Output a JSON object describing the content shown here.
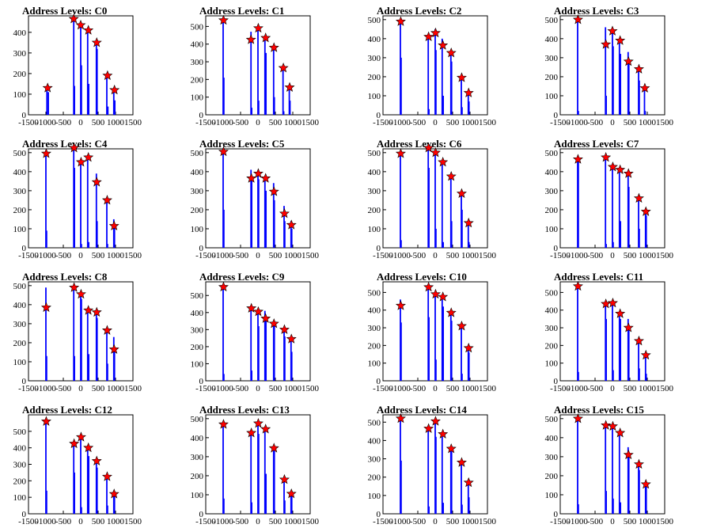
{
  "page": {
    "xlim": [
      -1500,
      1500
    ],
    "x_ticks": [
      -1500,
      -1000,
      -500,
      0,
      500,
      1000,
      1500
    ],
    "bar_color": "#0000ff",
    "marker_color": "#ff0000"
  },
  "chart_data": [
    {
      "type": "bar",
      "title": "Address Levels: C0",
      "ylim": [
        0,
        480
      ],
      "y_ticks": [
        0,
        100,
        200,
        300,
        400
      ],
      "x": [
        -970,
        -930,
        -200,
        -180,
        0,
        20,
        200,
        230,
        450,
        470,
        750,
        780,
        950,
        980
      ],
      "values": [
        130,
        110,
        460,
        140,
        430,
        240,
        410,
        150,
        350,
        320,
        190,
        40,
        120,
        70
      ],
      "peaks": {
        "x": [
          -950,
          -200,
          0,
          220,
          460,
          770,
          970
        ],
        "values": [
          130,
          465,
          435,
          410,
          350,
          190,
          120
        ]
      }
    },
    {
      "type": "bar",
      "title": "Address Levels: C1",
      "ylim": [
        0,
        560
      ],
      "y_ticks": [
        0,
        100,
        200,
        300,
        400,
        500
      ],
      "x": [
        -1000,
        -980,
        -200,
        -180,
        0,
        20,
        200,
        230,
        450,
        470,
        720,
        740,
        900,
        920
      ],
      "values": [
        540,
        210,
        470,
        40,
        500,
        80,
        440,
        350,
        390,
        100,
        260,
        20,
        160,
        80
      ],
      "peaks": {
        "x": [
          -990,
          -200,
          10,
          220,
          460,
          730,
          910
        ],
        "values": [
          535,
          425,
          490,
          435,
          380,
          265,
          155
        ]
      }
    },
    {
      "type": "bar",
      "title": "Address Levels: C2",
      "ylim": [
        0,
        520
      ],
      "y_ticks": [
        0,
        100,
        200,
        300,
        400,
        500
      ],
      "x": [
        -1000,
        -980,
        -200,
        -180,
        0,
        20,
        200,
        230,
        450,
        470,
        750,
        770,
        950,
        970
      ],
      "values": [
        500,
        300,
        420,
        30,
        450,
        340,
        400,
        100,
        330,
        280,
        200,
        40,
        120,
        70
      ],
      "peaks": {
        "x": [
          -990,
          -190,
          10,
          220,
          460,
          760,
          960
        ],
        "values": [
          490,
          410,
          430,
          365,
          325,
          195,
          115
        ]
      }
    },
    {
      "type": "bar",
      "title": "Address Levels: C3",
      "ylim": [
        0,
        520
      ],
      "y_ticks": [
        0,
        100,
        200,
        300,
        400,
        500
      ],
      "x": [
        -1000,
        -980,
        -200,
        -180,
        0,
        20,
        200,
        230,
        450,
        470,
        750,
        770,
        920,
        940
      ],
      "values": [
        510,
        20,
        460,
        100,
        450,
        360,
        400,
        320,
        330,
        280,
        240,
        180,
        140,
        20
      ],
      "peaks": {
        "x": [
          -990,
          -190,
          0,
          220,
          460,
          760,
          930
        ],
        "values": [
          500,
          370,
          440,
          390,
          280,
          240,
          140
        ]
      }
    },
    {
      "type": "bar",
      "title": "Address Levels: C4",
      "ylim": [
        0,
        520
      ],
      "y_ticks": [
        0,
        100,
        200,
        300,
        400,
        500
      ],
      "x": [
        -1000,
        -980,
        -200,
        -180,
        0,
        20,
        200,
        230,
        450,
        470,
        750,
        770,
        950,
        970
      ],
      "values": [
        500,
        90,
        530,
        420,
        460,
        20,
        480,
        30,
        390,
        140,
        250,
        20,
        150,
        120
      ],
      "peaks": {
        "x": [
          -990,
          -190,
          10,
          220,
          460,
          760,
          960
        ],
        "values": [
          495,
          525,
          450,
          475,
          345,
          250,
          115
        ]
      }
    },
    {
      "type": "bar",
      "title": "Address Levels: C5",
      "ylim": [
        0,
        520
      ],
      "y_ticks": [
        0,
        100,
        200,
        300,
        400,
        500
      ],
      "x": [
        -1000,
        -980,
        -200,
        -180,
        0,
        20,
        200,
        230,
        450,
        470,
        750,
        770,
        950,
        970
      ],
      "values": [
        510,
        200,
        410,
        370,
        400,
        360,
        370,
        300,
        340,
        250,
        220,
        140,
        140,
        100
      ],
      "peaks": {
        "x": [
          -990,
          -190,
          10,
          220,
          460,
          760,
          960
        ],
        "values": [
          505,
          365,
          390,
          365,
          295,
          180,
          120
        ]
      }
    },
    {
      "type": "bar",
      "title": "Address Levels: C6",
      "ylim": [
        0,
        520
      ],
      "y_ticks": [
        0,
        100,
        200,
        300,
        400,
        500
      ],
      "x": [
        -1000,
        -980,
        -200,
        -180,
        0,
        20,
        200,
        230,
        450,
        470,
        750,
        770,
        950,
        970
      ],
      "values": [
        500,
        40,
        530,
        420,
        500,
        100,
        450,
        30,
        380,
        140,
        290,
        200,
        140,
        30
      ],
      "peaks": {
        "x": [
          -990,
          -190,
          10,
          220,
          460,
          760,
          960
        ],
        "values": [
          495,
          525,
          500,
          450,
          375,
          285,
          130
        ]
      }
    },
    {
      "type": "bar",
      "title": "Address Levels: C7",
      "ylim": [
        0,
        520
      ],
      "y_ticks": [
        0,
        100,
        200,
        300,
        400,
        500
      ],
      "x": [
        -1000,
        -980,
        -200,
        -180,
        0,
        20,
        200,
        230,
        450,
        470,
        750,
        770,
        950,
        970
      ],
      "values": [
        480,
        460,
        480,
        20,
        430,
        30,
        420,
        140,
        400,
        320,
        270,
        100,
        190,
        170
      ],
      "peaks": {
        "x": [
          -990,
          -190,
          10,
          220,
          460,
          760,
          960
        ],
        "values": [
          465,
          475,
          425,
          410,
          390,
          260,
          190
        ]
      }
    },
    {
      "type": "bar",
      "title": "Address Levels: C8",
      "ylim": [
        0,
        520
      ],
      "y_ticks": [
        0,
        100,
        200,
        300,
        400,
        500
      ],
      "x": [
        -1000,
        -980,
        -200,
        -180,
        0,
        20,
        200,
        230,
        450,
        470,
        750,
        770,
        950,
        970
      ],
      "values": [
        490,
        130,
        500,
        130,
        460,
        430,
        380,
        140,
        370,
        330,
        260,
        90,
        230,
        160
      ],
      "peaks": {
        "x": [
          -990,
          -190,
          10,
          220,
          460,
          760,
          960
        ],
        "values": [
          385,
          490,
          455,
          370,
          360,
          265,
          165
        ]
      }
    },
    {
      "type": "bar",
      "title": "Address Levels: C9",
      "ylim": [
        0,
        580
      ],
      "y_ticks": [
        0,
        100,
        200,
        300,
        400,
        500
      ],
      "x": [
        -1000,
        -980,
        -200,
        -180,
        0,
        20,
        200,
        230,
        450,
        470,
        750,
        770,
        950,
        970
      ],
      "values": [
        560,
        40,
        430,
        60,
        410,
        320,
        410,
        370,
        350,
        320,
        310,
        260,
        250,
        170
      ],
      "peaks": {
        "x": [
          -990,
          -190,
          10,
          220,
          460,
          760,
          960
        ],
        "values": [
          550,
          425,
          405,
          365,
          335,
          300,
          245
        ]
      }
    },
    {
      "type": "bar",
      "title": "Address Levels: C10",
      "ylim": [
        0,
        560
      ],
      "y_ticks": [
        0,
        100,
        200,
        300,
        400,
        500
      ],
      "x": [
        -1000,
        -980,
        -200,
        -180,
        0,
        20,
        200,
        230,
        450,
        470,
        750,
        770,
        950,
        970
      ],
      "values": [
        460,
        330,
        540,
        360,
        500,
        120,
        480,
        420,
        400,
        340,
        320,
        40,
        190,
        160
      ],
      "peaks": {
        "x": [
          -990,
          -190,
          10,
          220,
          460,
          760,
          960
        ],
        "values": [
          425,
          530,
          490,
          475,
          385,
          310,
          185
        ]
      }
    },
    {
      "type": "bar",
      "title": "Address Levels: C11",
      "ylim": [
        0,
        560
      ],
      "y_ticks": [
        0,
        100,
        200,
        300,
        400,
        500
      ],
      "x": [
        -1000,
        -980,
        -200,
        -180,
        0,
        20,
        200,
        230,
        450,
        470,
        750,
        770,
        950,
        970
      ],
      "values": [
        540,
        50,
        450,
        350,
        440,
        60,
        390,
        350,
        350,
        300,
        230,
        70,
        150,
        40
      ],
      "peaks": {
        "x": [
          -990,
          -190,
          10,
          220,
          460,
          760,
          960
        ],
        "values": [
          535,
          435,
          440,
          380,
          300,
          225,
          145
        ]
      }
    },
    {
      "type": "bar",
      "title": "Address Levels: C12",
      "ylim": [
        0,
        600
      ],
      "y_ticks": [
        0,
        100,
        200,
        300,
        400,
        500
      ],
      "x": [
        -1000,
        -980,
        -200,
        -180,
        0,
        20,
        200,
        230,
        450,
        470,
        750,
        770,
        950,
        970
      ],
      "values": [
        570,
        140,
        430,
        250,
        470,
        40,
        410,
        350,
        330,
        280,
        240,
        50,
        140,
        120
      ],
      "peaks": {
        "x": [
          -990,
          -190,
          10,
          220,
          460,
          760,
          960
        ],
        "values": [
          560,
          425,
          465,
          400,
          320,
          225,
          120
        ]
      }
    },
    {
      "type": "bar",
      "title": "Address Levels: C13",
      "ylim": [
        0,
        520
      ],
      "y_ticks": [
        0,
        100,
        200,
        300,
        400,
        500
      ],
      "x": [
        -1000,
        -980,
        -200,
        -180,
        0,
        20,
        200,
        230,
        450,
        470,
        750,
        770,
        950,
        970
      ],
      "values": [
        480,
        80,
        430,
        60,
        480,
        420,
        450,
        210,
        350,
        330,
        190,
        70,
        120,
        100
      ],
      "peaks": {
        "x": [
          -990,
          -190,
          10,
          220,
          460,
          760,
          960
        ],
        "values": [
          470,
          425,
          475,
          445,
          345,
          180,
          105
        ]
      }
    },
    {
      "type": "bar",
      "title": "Address Levels: C14",
      "ylim": [
        0,
        540
      ],
      "y_ticks": [
        0,
        100,
        200,
        300,
        400,
        500
      ],
      "x": [
        -1000,
        -980,
        -200,
        -180,
        0,
        20,
        200,
        230,
        450,
        470,
        750,
        770,
        950,
        970
      ],
      "values": [
        530,
        290,
        470,
        40,
        500,
        420,
        440,
        60,
        360,
        340,
        290,
        50,
        170,
        90
      ],
      "peaks": {
        "x": [
          -990,
          -190,
          10,
          220,
          460,
          760,
          960
        ],
        "values": [
          520,
          465,
          505,
          435,
          355,
          280,
          170
        ]
      }
    },
    {
      "type": "bar",
      "title": "Address Levels: C15",
      "ylim": [
        0,
        520
      ],
      "y_ticks": [
        0,
        100,
        200,
        300,
        400,
        500
      ],
      "x": [
        -1000,
        -980,
        -200,
        -180,
        0,
        20,
        200,
        230,
        450,
        470,
        750,
        770,
        950,
        970
      ],
      "values": [
        510,
        50,
        470,
        120,
        470,
        80,
        430,
        60,
        350,
        310,
        270,
        230,
        170,
        160
      ],
      "peaks": {
        "x": [
          -990,
          -190,
          10,
          220,
          460,
          760,
          960
        ],
        "values": [
          500,
          465,
          460,
          425,
          310,
          260,
          155
        ]
      }
    }
  ]
}
